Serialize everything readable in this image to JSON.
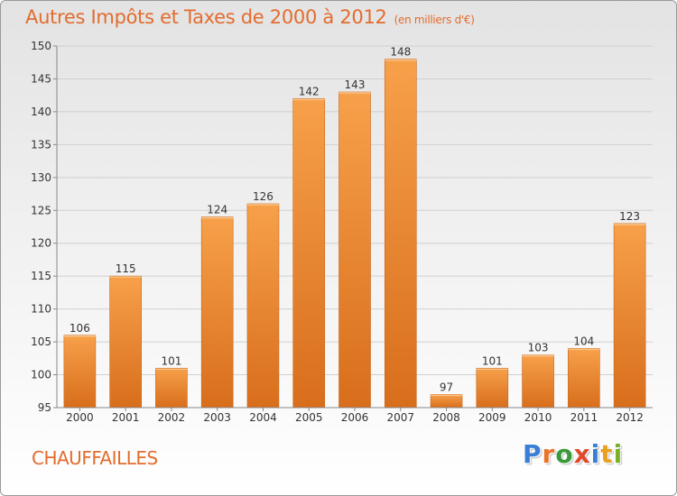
{
  "header": {
    "title": "Autres Impôts et Taxes de 2000 à 2012",
    "unit": "(en milliers d'€)"
  },
  "footer": {
    "location": "CHAUFFAILLES",
    "brand": {
      "letters": [
        "P",
        "r",
        "o",
        "x",
        "i",
        "t",
        "i"
      ],
      "colors": [
        "#3a7fd5",
        "#e8742a",
        "#3a9a3a",
        "#e04a2a",
        "#3a7fd5",
        "#e8a020",
        "#7ab02a"
      ]
    }
  },
  "colors": {
    "bar_top": "#f7a04a",
    "bar_bottom": "#d86e1c",
    "axis": "#888888",
    "grid": "#d0d0d0",
    "text": "#333333"
  },
  "chart_data": {
    "type": "bar",
    "title": "Autres Impôts et Taxes de 2000 à 2012",
    "categories": [
      "2000",
      "2001",
      "2002",
      "2003",
      "2004",
      "2005",
      "2006",
      "2007",
      "2008",
      "2009",
      "2010",
      "2011",
      "2012"
    ],
    "values": [
      106,
      115,
      101,
      124,
      126,
      142,
      143,
      148,
      97,
      101,
      103,
      104,
      123
    ],
    "ylim": [
      95,
      150
    ],
    "yticks": [
      95,
      100,
      105,
      110,
      115,
      120,
      125,
      130,
      135,
      140,
      145,
      150
    ],
    "grid": true,
    "legend": "none"
  }
}
